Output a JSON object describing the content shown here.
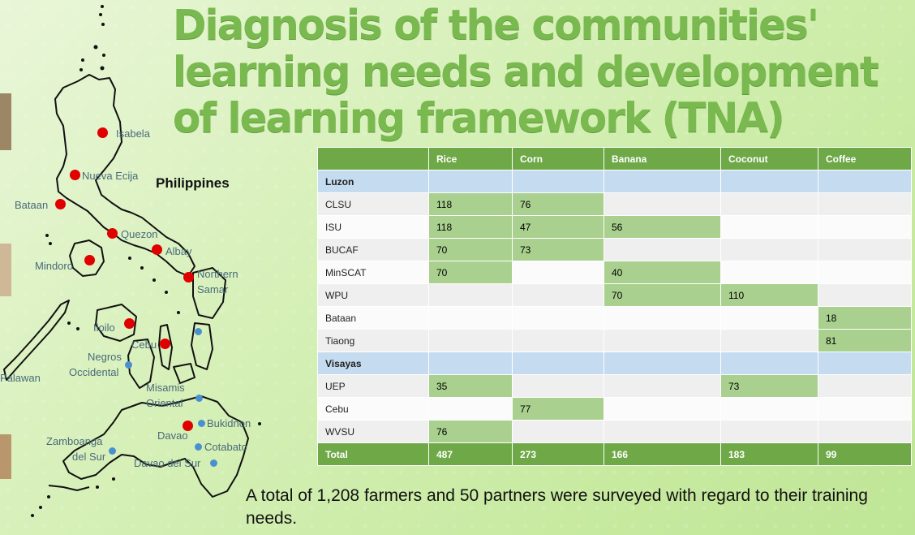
{
  "title": "Diagnosis of the communities' learning needs and development of learning framework (TNA)",
  "map": {
    "country_label": "Philippines",
    "locations": [
      {
        "name": "Isabela",
        "marker": "red"
      },
      {
        "name": "Nueva Ecija",
        "marker": "red"
      },
      {
        "name": "Bataan",
        "marker": "red"
      },
      {
        "name": "Quezon",
        "marker": "red"
      },
      {
        "name": "Albay",
        "marker": "red"
      },
      {
        "name": "Mindoro",
        "marker": "red"
      },
      {
        "name": "Northern Samar",
        "marker": "red"
      },
      {
        "name": "Iloilo",
        "marker": "red"
      },
      {
        "name": "Cebu",
        "marker": "red"
      },
      {
        "name": "Negros Occidental",
        "marker": "blue"
      },
      {
        "name": "Palawan",
        "marker": "none"
      },
      {
        "name": "Misamis Oriental",
        "marker": "blue"
      },
      {
        "name": "Bukidnon",
        "marker": "blue"
      },
      {
        "name": "Davao",
        "marker": "red"
      },
      {
        "name": "Cotabato",
        "marker": "blue"
      },
      {
        "name": "Zamboanga del Sur",
        "marker": "blue"
      },
      {
        "name": "Davao del Sur",
        "marker": "blue"
      }
    ],
    "label_lines": {
      "northern_samar": [
        "Northern",
        "Samar"
      ],
      "negros": [
        "Negros",
        "Occidental"
      ],
      "misamis": [
        "Misamis",
        "Oriental"
      ],
      "zamboanga": [
        "Zamboanga",
        "del Sur"
      ]
    }
  },
  "table": {
    "columns": [
      "",
      "Rice",
      "Corn",
      "Banana",
      "Coconut",
      "Coffee"
    ],
    "groups": [
      {
        "name": "Luzon",
        "rows": [
          {
            "institution": "CLSU",
            "values": [
              "118",
              "76",
              "",
              "",
              ""
            ]
          },
          {
            "institution": "ISU",
            "values": [
              "118",
              "47",
              "56",
              "",
              ""
            ]
          },
          {
            "institution": "BUCAF",
            "values": [
              "70",
              "73",
              "",
              "",
              ""
            ]
          },
          {
            "institution": "MinSCAT",
            "values": [
              "70",
              "",
              "40",
              "",
              ""
            ]
          },
          {
            "institution": "WPU",
            "values": [
              "",
              "",
              "70",
              "110",
              ""
            ]
          },
          {
            "institution": "Bataan",
            "values": [
              "",
              "",
              "",
              "",
              "18"
            ]
          },
          {
            "institution": "Tiaong",
            "values": [
              "",
              "",
              "",
              "",
              "81"
            ]
          }
        ]
      },
      {
        "name": "Visayas",
        "rows": [
          {
            "institution": "UEP",
            "values": [
              "35",
              "",
              "",
              "73",
              ""
            ]
          },
          {
            "institution": "Cebu",
            "values": [
              "",
              "77",
              "",
              "",
              ""
            ]
          },
          {
            "institution": "WVSU",
            "values": [
              "76",
              "",
              "",
              "",
              ""
            ]
          }
        ]
      }
    ],
    "total": {
      "label": "Total",
      "values": [
        "487",
        "273",
        "166",
        "183",
        "99"
      ]
    }
  },
  "summary": "A total of 1,208 farmers  and 50 partners were surveyed with regard to their training needs.",
  "colors": {
    "title": "#79b94f",
    "header_bg": "#6ea847",
    "filled_cell": "#a9d08e",
    "group_bg": "#c5dbf0",
    "red_marker": "#e00000",
    "blue_marker": "#4a90d0"
  }
}
